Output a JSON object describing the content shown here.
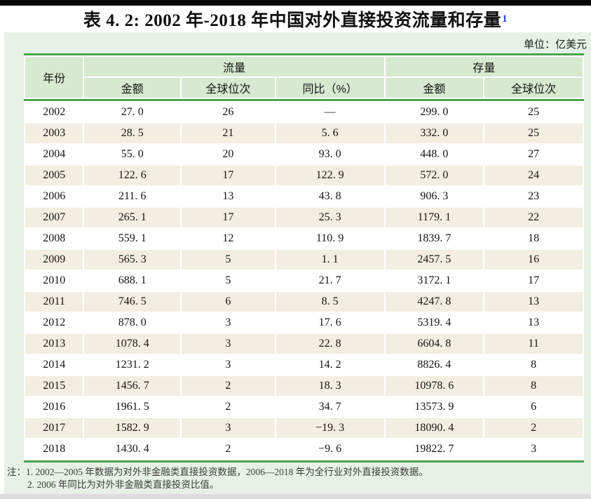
{
  "title": {
    "text": "表 4. 2: 2002 年-2018 年中国对外直接投资流量和存量",
    "footnote_ref": "1"
  },
  "unit_label": "单位：亿美元",
  "colors": {
    "border_green": "#4ea24e",
    "header_green": "#d7e9cf",
    "row_beige": "#f3eee1",
    "panel_green": "#e7f1e5",
    "footnote_ref_blue": "#2946cc"
  },
  "table": {
    "header": {
      "year": "年份",
      "flow_group": "流量",
      "stock_group": "存量",
      "flow_amount": "金额",
      "flow_rank": "全球位次",
      "flow_yoy": "同比（%）",
      "stock_amount": "金额",
      "stock_rank": "全球位次"
    },
    "rows": [
      [
        "2002",
        "27. 0",
        "26",
        "—",
        "299. 0",
        "25"
      ],
      [
        "2003",
        "28. 5",
        "21",
        "5. 6",
        "332. 0",
        "25"
      ],
      [
        "2004",
        "55. 0",
        "20",
        "93. 0",
        "448. 0",
        "27"
      ],
      [
        "2005",
        "122. 6",
        "17",
        "122. 9",
        "572. 0",
        "24"
      ],
      [
        "2006",
        "211. 6",
        "13",
        "43. 8",
        "906. 3",
        "23"
      ],
      [
        "2007",
        "265. 1",
        "17",
        "25. 3",
        "1179. 1",
        "22"
      ],
      [
        "2008",
        "559. 1",
        "12",
        "110. 9",
        "1839. 7",
        "18"
      ],
      [
        "2009",
        "565. 3",
        "5",
        "1. 1",
        "2457. 5",
        "16"
      ],
      [
        "2010",
        "688. 1",
        "5",
        "21. 7",
        "3172. 1",
        "17"
      ],
      [
        "2011",
        "746. 5",
        "6",
        "8. 5",
        "4247. 8",
        "13"
      ],
      [
        "2012",
        "878. 0",
        "3",
        "17. 6",
        "5319. 4",
        "13"
      ],
      [
        "2013",
        "1078. 4",
        "3",
        "22. 8",
        "6604. 8",
        "11"
      ],
      [
        "2014",
        "1231. 2",
        "3",
        "14. 2",
        "8826. 4",
        "8"
      ],
      [
        "2015",
        "1456. 7",
        "2",
        "18. 3",
        "10978. 6",
        "8"
      ],
      [
        "2016",
        "1961. 5",
        "2",
        "34. 7",
        "13573. 9",
        "6"
      ],
      [
        "2017",
        "1582. 9",
        "3",
        "−19. 3",
        "18090. 4",
        "2"
      ],
      [
        "2018",
        "1430. 4",
        "2",
        "−9. 6",
        "19822. 7",
        "3"
      ]
    ]
  },
  "notes": {
    "label": "注：",
    "items": [
      "1. 2002—2005 年数据为对外非金融类直接投资数据，2006—2018 年为全行业对外直接投资数据。",
      "2. 2006 年同比为对外非金融类直接投资比值。"
    ]
  }
}
